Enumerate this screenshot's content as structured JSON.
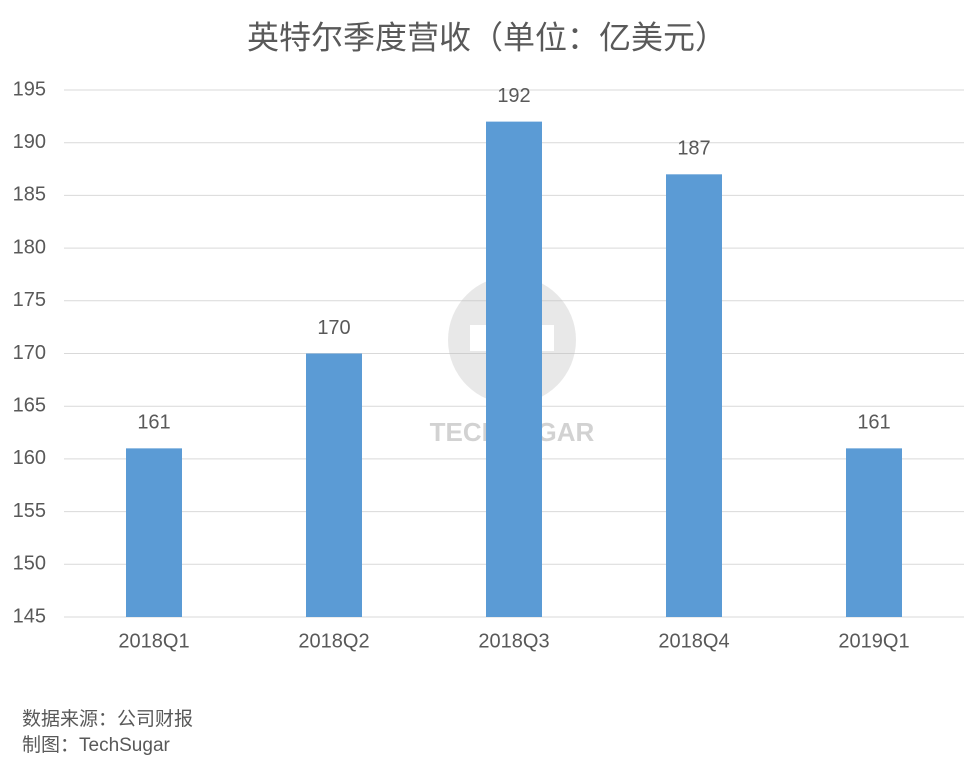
{
  "chart_data": {
    "type": "bar",
    "title": "英特尔季度营收（单位：亿美元）",
    "categories": [
      "2018Q1",
      "2018Q2",
      "2018Q3",
      "2018Q4",
      "2019Q1"
    ],
    "values": [
      161,
      170,
      192,
      187,
      161
    ],
    "color": "#5b9bd5",
    "ylim": [
      145,
      195
    ],
    "yticks": [
      145,
      150,
      155,
      160,
      165,
      170,
      175,
      180,
      185,
      190,
      195
    ],
    "grid": true,
    "watermark": "TECHSUGAR",
    "notes": [
      "数据来源：公司财报",
      "制图：TechSugar"
    ]
  }
}
